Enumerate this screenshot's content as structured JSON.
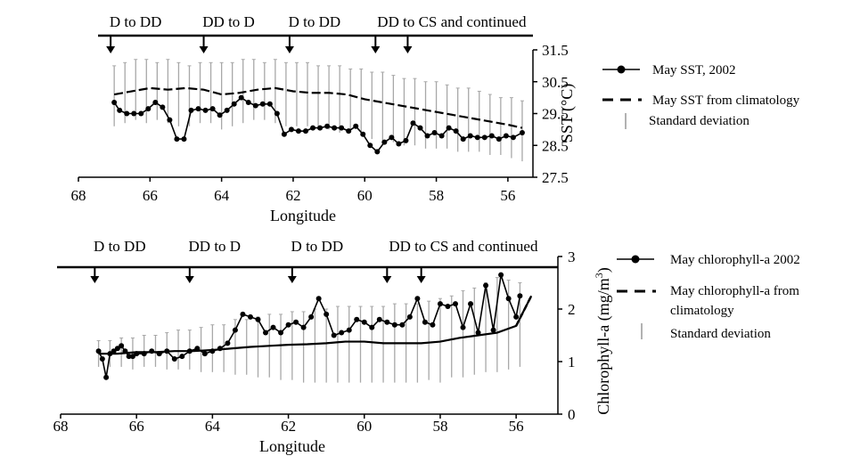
{
  "chart_data": [
    {
      "type": "line",
      "xlabel": "Longitude",
      "ylabel": "SST (°C)",
      "xlim": [
        68,
        55.3
      ],
      "ylim": [
        27.5,
        31.5
      ],
      "xticks": [
        "68",
        "66",
        "64",
        "62",
        "60",
        "58",
        "56"
      ],
      "yticks": [
        "27.5",
        "28.5",
        "29.5",
        "30.5",
        "31.5"
      ],
      "segments": [
        {
          "label": "D to DD",
          "lon": 67.1
        },
        {
          "label": "DD to D",
          "lon": 64.5
        },
        {
          "label": "D to DD",
          "lon": 62.1
        },
        {
          "label": "DD to CS and continued",
          "lon": 59.7
        }
      ],
      "extra_arrow_lon": 58.8,
      "series": [
        {
          "name": "May SST, 2002",
          "x": [
            67.0,
            66.85,
            66.65,
            66.45,
            66.25,
            66.05,
            65.85,
            65.65,
            65.45,
            65.25,
            65.05,
            64.85,
            64.65,
            64.45,
            64.25,
            64.05,
            63.85,
            63.65,
            63.45,
            63.25,
            63.05,
            62.85,
            62.65,
            62.45,
            62.25,
            62.05,
            61.85,
            61.65,
            61.45,
            61.25,
            61.05,
            60.85,
            60.65,
            60.45,
            60.25,
            60.05,
            59.85,
            59.65,
            59.45,
            59.25,
            59.05,
            58.85,
            58.65,
            58.45,
            58.25,
            58.05,
            57.85,
            57.65,
            57.45,
            57.25,
            57.05,
            56.85,
            56.65,
            56.45,
            56.25,
            56.05,
            55.85,
            55.6
          ],
          "values": [
            29.85,
            29.6,
            29.5,
            29.5,
            29.5,
            29.65,
            29.85,
            29.7,
            29.3,
            28.7,
            28.7,
            29.6,
            29.65,
            29.6,
            29.65,
            29.45,
            29.6,
            29.8,
            30.0,
            29.85,
            29.75,
            29.8,
            29.8,
            29.5,
            28.85,
            29.0,
            28.95,
            28.95,
            29.05,
            29.05,
            29.1,
            29.05,
            29.05,
            28.95,
            29.1,
            28.85,
            28.5,
            28.3,
            28.6,
            28.75,
            28.55,
            28.65,
            29.2,
            29.05,
            28.8,
            28.9,
            28.8,
            29.05,
            28.95,
            28.7,
            28.8,
            28.75,
            28.75,
            28.8,
            28.7,
            28.8,
            28.75,
            28.9
          ]
        },
        {
          "name": "May SST from climatology",
          "x": [
            67.0,
            66.5,
            66.0,
            65.5,
            65.0,
            64.5,
            64.0,
            63.5,
            63.0,
            62.5,
            62.0,
            61.5,
            61.0,
            60.5,
            60.0,
            59.5,
            59.0,
            58.5,
            58.0,
            57.5,
            57.0,
            56.5,
            56.0,
            55.6
          ],
          "values": [
            30.1,
            30.2,
            30.3,
            30.25,
            30.3,
            30.25,
            30.1,
            30.15,
            30.25,
            30.3,
            30.2,
            30.15,
            30.15,
            30.1,
            29.95,
            29.85,
            29.75,
            29.65,
            29.55,
            29.45,
            29.35,
            29.25,
            29.15,
            29.05
          ]
        },
        {
          "name": "Standard deviation",
          "x": [
            67.0,
            66.7,
            66.4,
            66.1,
            65.8,
            65.5,
            65.2,
            64.9,
            64.6,
            64.3,
            64.0,
            63.7,
            63.4,
            63.1,
            62.8,
            62.5,
            62.2,
            61.9,
            61.6,
            61.3,
            61.0,
            60.7,
            60.4,
            60.1,
            59.8,
            59.5,
            59.2,
            58.9,
            58.6,
            58.3,
            58.0,
            57.7,
            57.4,
            57.1,
            56.8,
            56.5,
            56.2,
            55.9,
            55.6
          ],
          "low": [
            29.1,
            29.2,
            29.3,
            29.2,
            29.3,
            29.2,
            29.1,
            29.1,
            29.2,
            29.2,
            29.0,
            29.1,
            29.2,
            29.3,
            29.3,
            29.2,
            29.1,
            29.1,
            29.1,
            29.0,
            29.0,
            28.9,
            28.9,
            28.8,
            28.7,
            28.6,
            28.6,
            28.5,
            28.5,
            28.4,
            28.4,
            28.4,
            28.3,
            28.3,
            28.3,
            28.2,
            28.2,
            28.1,
            28.0
          ],
          "high": [
            31.0,
            31.1,
            31.2,
            31.2,
            31.1,
            31.2,
            31.1,
            31.0,
            31.1,
            31.1,
            31.1,
            31.1,
            31.2,
            31.2,
            31.1,
            31.2,
            31.1,
            31.1,
            31.1,
            31.0,
            31.0,
            31.0,
            30.9,
            30.9,
            30.8,
            30.8,
            30.7,
            30.6,
            30.6,
            30.5,
            30.5,
            30.4,
            30.3,
            30.3,
            30.2,
            30.1,
            30.0,
            30.0,
            29.9
          ]
        }
      ]
    },
    {
      "type": "line",
      "xlabel": "Longitude",
      "ylabel": "Chlorophyll-a (mg/m",
      "ylabel_sup": "3",
      "ylabel_end": ")",
      "xlim": [
        68,
        54.9
      ],
      "ylim": [
        0,
        3
      ],
      "xticks": [
        "68",
        "66",
        "64",
        "62",
        "60",
        "58",
        "56"
      ],
      "yticks": [
        "0",
        "1",
        "2",
        "3"
      ],
      "segments": [
        {
          "label": "D to DD",
          "lon": 67.1
        },
        {
          "label": "DD to D",
          "lon": 64.6
        },
        {
          "label": "D to DD",
          "lon": 61.9
        },
        {
          "label": "DD to CS and continued",
          "lon": 59.4
        }
      ],
      "extra_arrow_lon": 58.5,
      "series": [
        {
          "name": "May chlorophyll-a 2002",
          "x": [
            67.0,
            66.9,
            66.8,
            66.7,
            66.6,
            66.5,
            66.4,
            66.3,
            66.2,
            66.1,
            66.0,
            65.8,
            65.6,
            65.4,
            65.2,
            65.0,
            64.8,
            64.6,
            64.4,
            64.2,
            64.0,
            63.8,
            63.6,
            63.4,
            63.2,
            63.0,
            62.8,
            62.6,
            62.4,
            62.2,
            62.0,
            61.8,
            61.6,
            61.4,
            61.2,
            61.0,
            60.8,
            60.6,
            60.4,
            60.2,
            60.0,
            59.8,
            59.6,
            59.4,
            59.2,
            59.0,
            58.8,
            58.6,
            58.4,
            58.2,
            58.0,
            57.8,
            57.6,
            57.4,
            57.2,
            57.0,
            56.8,
            56.6,
            56.4,
            56.2,
            56.0,
            55.9
          ],
          "values": [
            1.2,
            1.05,
            0.7,
            1.15,
            1.2,
            1.25,
            1.3,
            1.2,
            1.1,
            1.1,
            1.15,
            1.15,
            1.2,
            1.15,
            1.2,
            1.05,
            1.1,
            1.2,
            1.25,
            1.15,
            1.2,
            1.25,
            1.35,
            1.6,
            1.9,
            1.85,
            1.8,
            1.55,
            1.65,
            1.55,
            1.7,
            1.75,
            1.65,
            1.85,
            2.2,
            1.9,
            1.5,
            1.55,
            1.6,
            1.8,
            1.75,
            1.65,
            1.8,
            1.75,
            1.7,
            1.7,
            1.85,
            2.2,
            1.75,
            1.7,
            2.1,
            2.05,
            2.1,
            1.65,
            2.1,
            1.55,
            2.45,
            1.6,
            2.65,
            2.2,
            1.85,
            2.25
          ]
        },
        {
          "name": "May chlorophyll-a from climatology",
          "x": [
            67.0,
            66.5,
            66.0,
            65.5,
            65.0,
            64.5,
            64.0,
            63.5,
            63.0,
            62.5,
            62.0,
            61.5,
            61.0,
            60.5,
            60.0,
            59.5,
            59.0,
            58.5,
            58.0,
            57.5,
            57.0,
            56.5,
            56.0,
            55.6
          ],
          "values": [
            1.15,
            1.15,
            1.18,
            1.18,
            1.2,
            1.2,
            1.22,
            1.25,
            1.28,
            1.3,
            1.32,
            1.33,
            1.35,
            1.38,
            1.38,
            1.35,
            1.35,
            1.35,
            1.38,
            1.45,
            1.5,
            1.55,
            1.68,
            2.25
          ]
        },
        {
          "name": "Standard deviation",
          "x": [
            67.0,
            66.7,
            66.4,
            66.1,
            65.8,
            65.5,
            65.2,
            64.9,
            64.6,
            64.3,
            64.0,
            63.7,
            63.4,
            63.1,
            62.8,
            62.5,
            62.2,
            61.9,
            61.6,
            61.3,
            61.0,
            60.7,
            60.4,
            60.1,
            59.8,
            59.5,
            59.2,
            58.9,
            58.6,
            58.3,
            58.0,
            57.7,
            57.4,
            57.1,
            56.8,
            56.5,
            56.2,
            55.9
          ],
          "low": [
            0.9,
            0.9,
            0.9,
            0.85,
            0.9,
            0.9,
            0.85,
            0.85,
            0.85,
            0.8,
            0.8,
            0.8,
            0.75,
            0.75,
            0.7,
            0.7,
            0.65,
            0.65,
            0.6,
            0.6,
            0.6,
            0.6,
            0.6,
            0.6,
            0.6,
            0.6,
            0.6,
            0.6,
            0.6,
            0.65,
            0.6,
            0.7,
            0.7,
            0.75,
            0.8,
            0.8,
            0.85,
            0.9
          ],
          "high": [
            1.4,
            1.4,
            1.45,
            1.45,
            1.5,
            1.5,
            1.55,
            1.6,
            1.6,
            1.65,
            1.7,
            1.7,
            1.8,
            1.8,
            1.85,
            1.9,
            1.9,
            1.95,
            1.95,
            2.0,
            2.0,
            2.05,
            2.05,
            2.05,
            2.05,
            2.05,
            2.1,
            2.1,
            2.1,
            2.15,
            2.2,
            2.25,
            2.35,
            2.4,
            2.5,
            2.6,
            2.55,
            2.5
          ]
        }
      ]
    }
  ]
}
